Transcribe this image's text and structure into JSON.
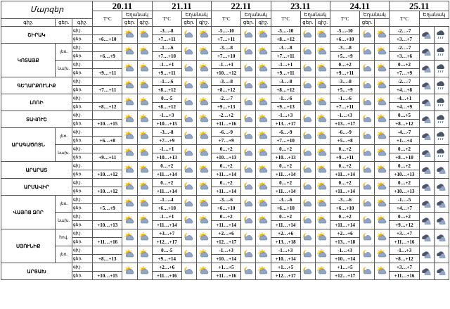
{
  "header": {
    "region_col": "Մարզեր",
    "dates": [
      "20.11",
      "21.11",
      "22.11",
      "23.11",
      "24.11",
      "25.11"
    ],
    "temp_label": "T°C",
    "weather_label": "Եղանակ",
    "period_day": "ցեր.",
    "period_night": "գիշ."
  },
  "rows": [
    {
      "region": "ՇԻՐԱԿ",
      "sub": "",
      "periods": [
        "գիշ.",
        "ցեր."
      ],
      "temps": [
        [
          "",
          "+6…+10"
        ],
        [
          "-3…-8",
          "+7…+11"
        ],
        [
          "-5…-10",
          "+7…+11"
        ],
        [
          "-5…-10",
          "+8…+12"
        ],
        [
          "-5…-10",
          "+6…+10"
        ],
        [
          "-2…-7",
          "+3…+7"
        ]
      ],
      "icons": [
        [
          "sun",
          "sun"
        ],
        [
          "moon",
          "sun"
        ],
        [
          "moon",
          "sun"
        ],
        [
          "moon",
          "sun"
        ],
        [
          "moon",
          "sun"
        ],
        [
          "cloud",
          "rain"
        ]
      ]
    },
    {
      "region": "ԿՈՏԱՅՔ",
      "sub": "լեռ.",
      "periods": [
        "գիշ.",
        "ցեր."
      ],
      "temps": [
        [
          "",
          "+6…+9"
        ],
        [
          "-1…-6",
          "+7…+10"
        ],
        [
          "-3…-8",
          "+7…+10"
        ],
        [
          "-3…-8",
          "+7…+11"
        ],
        [
          "-3…-8",
          "+5…+9"
        ],
        [
          "-2…-7",
          "+3…+6"
        ]
      ],
      "icons": [
        [
          "sun",
          "sun"
        ],
        [
          "moon",
          "sun"
        ],
        [
          "moon",
          "sun"
        ],
        [
          "moon",
          "sun"
        ],
        [
          "moon",
          "sun"
        ],
        [
          "cloud",
          "rain"
        ]
      ]
    },
    {
      "region": "",
      "sub": "նախ.",
      "periods": [
        "գիշ.",
        "ցեր."
      ],
      "temps": [
        [
          "",
          "+9…+11"
        ],
        [
          "-1…+1",
          "+9…+11"
        ],
        [
          "-1…+1",
          "+10…+12"
        ],
        [
          "-1…+1",
          "+9…+11"
        ],
        [
          "0…+2",
          "+9…+11"
        ],
        [
          "0…+2",
          "+7…+9"
        ]
      ],
      "icons": [
        [
          "sun",
          "sun"
        ],
        [
          "moon",
          "sun"
        ],
        [
          "moon",
          "sun"
        ],
        [
          "moon",
          "sun"
        ],
        [
          "moon",
          "sun"
        ],
        [
          "cloud",
          "rain"
        ]
      ]
    },
    {
      "region": "ԳԵՂԱՐՔՈՒՆԻՔ",
      "sub": "",
      "periods": [
        "գիշ.",
        "ցեր."
      ],
      "temps": [
        [
          "",
          "+7…+11"
        ],
        [
          "-1…-6",
          "+8…+12"
        ],
        [
          "-3…-8",
          "+8…+12"
        ],
        [
          "-3…-8",
          "+8…+12"
        ],
        [
          "-3…-8",
          "+5…+9"
        ],
        [
          "-2…-7",
          "+4…+8"
        ]
      ],
      "icons": [
        [
          "sun",
          "sun"
        ],
        [
          "moon",
          "sun"
        ],
        [
          "moon",
          "sun"
        ],
        [
          "moon",
          "sun"
        ],
        [
          "moon",
          "sun"
        ],
        [
          "cloud",
          "rain"
        ]
      ]
    },
    {
      "region": "ԼՈՌԻ",
      "sub": "",
      "periods": [
        "գիշ.",
        "ցեր."
      ],
      "temps": [
        [
          "",
          "+8…+12"
        ],
        [
          "0…-5",
          "+8…+12"
        ],
        [
          "-2…-7",
          "+9…+13"
        ],
        [
          "-1…-6",
          "+9…+13"
        ],
        [
          "-1…-6",
          "+7…+11"
        ],
        [
          "-4…+1",
          "+4…+9"
        ]
      ],
      "icons": [
        [
          "sun",
          "sun"
        ],
        [
          "moon",
          "sun"
        ],
        [
          "moon",
          "sun"
        ],
        [
          "moon",
          "sun"
        ],
        [
          "moon",
          "sun"
        ],
        [
          "cloud",
          "rain"
        ]
      ]
    },
    {
      "region": "ՏԱՎՈՒՇ",
      "sub": "",
      "periods": [
        "գիշ.",
        "ցեր."
      ],
      "temps": [
        [
          "",
          "+10…+15"
        ],
        [
          "-1…+3",
          "+10…+15"
        ],
        [
          "-2…+2",
          "+11…+16"
        ],
        [
          "-1…+3",
          "+13…+17"
        ],
        [
          "-1…+3",
          "+13…+17"
        ],
        [
          "0…+5",
          "+8…+12"
        ]
      ],
      "icons": [
        [
          "sun",
          "sun"
        ],
        [
          "moon",
          "sun"
        ],
        [
          "moon",
          "sun"
        ],
        [
          "moon",
          "sun"
        ],
        [
          "moon",
          "sun"
        ],
        [
          "cloud",
          "rain"
        ]
      ]
    },
    {
      "region": "ԱՐԱԳԱԾՈՏՆ",
      "sub": "լեռ.",
      "periods": [
        "գիշ.",
        "ցեր."
      ],
      "temps": [
        [
          "",
          "+6…+8"
        ],
        [
          "-3…-8",
          "+7…+9"
        ],
        [
          "-6…-9",
          "+7…+9"
        ],
        [
          "-6…-9",
          "+7…+10"
        ],
        [
          "-6…-9",
          "+5…+8"
        ],
        [
          "-4…-7",
          "+1…+4"
        ]
      ],
      "icons": [
        [
          "sun",
          "sun"
        ],
        [
          "moon",
          "sun"
        ],
        [
          "moon",
          "sun"
        ],
        [
          "moon",
          "sun"
        ],
        [
          "moon",
          "sun"
        ],
        [
          "cloud",
          "rain"
        ]
      ]
    },
    {
      "region": "",
      "sub": "նախ.",
      "periods": [
        "գիշ.",
        "ցեր."
      ],
      "temps": [
        [
          "",
          "+9…+11"
        ],
        [
          "-1…+1",
          "+10…+13"
        ],
        [
          "0…+2",
          "+10…+13"
        ],
        [
          "0…+2",
          "+10…+13"
        ],
        [
          "0…+2",
          "+9…+11"
        ],
        [
          "0…+2",
          "+8…+10"
        ]
      ],
      "icons": [
        [
          "sun",
          "sun"
        ],
        [
          "moon",
          "sun"
        ],
        [
          "moon",
          "sun"
        ],
        [
          "moon",
          "sun"
        ],
        [
          "moon",
          "sun"
        ],
        [
          "cloud",
          "rain"
        ]
      ]
    },
    {
      "region": "ԱՐԱՐԱՏ",
      "sub": "",
      "periods": [
        "գիշ.",
        "ցեր."
      ],
      "temps": [
        [
          "",
          "+10…+12"
        ],
        [
          "0…+2",
          "+11…+14"
        ],
        [
          "0…+2",
          "+11…+14"
        ],
        [
          "0…+2",
          "+11…+14"
        ],
        [
          "0…+2",
          "+11…+14"
        ],
        [
          "0…+2",
          "+10…+13"
        ]
      ],
      "icons": [
        [
          "sun",
          "sun"
        ],
        [
          "moon",
          "sun"
        ],
        [
          "moon",
          "sun"
        ],
        [
          "moon",
          "sun"
        ],
        [
          "moon",
          "sun"
        ],
        [
          "cloud",
          "cloud"
        ]
      ]
    },
    {
      "region": "ԱՐՄԱՎԻՐ",
      "sub": "",
      "periods": [
        "գիշ.",
        "ցեր."
      ],
      "temps": [
        [
          "",
          "+10…+12"
        ],
        [
          "0…+2",
          "+11…+14"
        ],
        [
          "0…+2",
          "+11…+14"
        ],
        [
          "0…+2",
          "+11…+14"
        ],
        [
          "0…+2",
          "+11…+14"
        ],
        [
          "0…+2",
          "+10…+13"
        ]
      ],
      "icons": [
        [
          "sun",
          "sun"
        ],
        [
          "moon",
          "sun"
        ],
        [
          "moon",
          "sun"
        ],
        [
          "moon",
          "sun"
        ],
        [
          "moon",
          "sun"
        ],
        [
          "cloud",
          "cloud"
        ]
      ]
    },
    {
      "region": "ՎԱՅՈՑ ՁՈՐ",
      "sub": "լեռ.",
      "periods": [
        "գիշ.",
        "ցեր."
      ],
      "temps": [
        [
          "",
          "+5…+9"
        ],
        [
          "-1…-4",
          "+6…+10"
        ],
        [
          "-3…-6",
          "+6…+10"
        ],
        [
          "-3…-6",
          "+6…+10"
        ],
        [
          "-3…-6",
          "+6…+10"
        ],
        [
          "-1…-5",
          "+4…+7"
        ]
      ],
      "icons": [
        [
          "sun",
          "sun"
        ],
        [
          "moon",
          "sun"
        ],
        [
          "moon",
          "sun"
        ],
        [
          "moon",
          "sun"
        ],
        [
          "moon",
          "sun"
        ],
        [
          "cloud",
          "cloud"
        ]
      ]
    },
    {
      "region": "",
      "sub": "նախ.",
      "periods": [
        "գիշ.",
        "ցեր."
      ],
      "temps": [
        [
          "",
          "+10…+13"
        ],
        [
          "-1…+1",
          "+11…+14"
        ],
        [
          "0…+2",
          "+11…+14"
        ],
        [
          "0…+2",
          "+11…+14"
        ],
        [
          "0…+2",
          "+11…+14"
        ],
        [
          "0…+2",
          "+9…+12"
        ]
      ],
      "icons": [
        [
          "sun",
          "sun"
        ],
        [
          "moon",
          "sun"
        ],
        [
          "moon",
          "sun"
        ],
        [
          "moon",
          "sun"
        ],
        [
          "moon",
          "sun"
        ],
        [
          "cloud",
          "cloud"
        ]
      ]
    },
    {
      "region": "ՍՅՈՒՆԻՔ",
      "sub": "հով.",
      "periods": [
        "գիշ.",
        "ցեր."
      ],
      "temps": [
        [
          "",
          "+11…+16"
        ],
        [
          "+3…+7",
          "+12…+17"
        ],
        [
          "+2…+6",
          "+12…+17"
        ],
        [
          "+2…+6",
          "+13…+18"
        ],
        [
          "+2…+6",
          "+13…+18"
        ],
        [
          "+3…+7",
          "+11…+16"
        ]
      ],
      "icons": [
        [
          "sun",
          "sun"
        ],
        [
          "moon",
          "sun"
        ],
        [
          "moon",
          "sun"
        ],
        [
          "moon",
          "sun"
        ],
        [
          "moon",
          "sun"
        ],
        [
          "cloud",
          "cloud"
        ]
      ]
    },
    {
      "region": "",
      "sub": "լեռ.",
      "periods": [
        "գիշ.",
        "ցեր."
      ],
      "temps": [
        [
          "",
          "+8…+13"
        ],
        [
          "0…-5",
          "+9…+14"
        ],
        [
          "-1…+3",
          "+10…+14"
        ],
        [
          "-1…+3",
          "+10…+14"
        ],
        [
          "-1…+3",
          "+10…+14"
        ],
        [
          "-1…+3",
          "+8…+12"
        ]
      ],
      "icons": [
        [
          "sun",
          "sun"
        ],
        [
          "moon",
          "sun"
        ],
        [
          "moon",
          "sun"
        ],
        [
          "moon",
          "sun"
        ],
        [
          "moon",
          "sun"
        ],
        [
          "cloud",
          "cloud"
        ]
      ]
    },
    {
      "region": "ԱՐՑԱԽ",
      "sub": "",
      "periods": [
        "գիշ.",
        "ցեր."
      ],
      "temps": [
        [
          "",
          "+10…+15"
        ],
        [
          "+2…+6",
          "+11…+16"
        ],
        [
          "+1…+5",
          "+11…+16"
        ],
        [
          "+1…+5",
          "+12…+17"
        ],
        [
          "+1…+5",
          "+12…+17"
        ],
        [
          "+3…+7",
          "+11…+16"
        ]
      ],
      "icons": [
        [
          "sun",
          "sun"
        ],
        [
          "moon",
          "sun"
        ],
        [
          "moon",
          "sun"
        ],
        [
          "moon",
          "sun"
        ],
        [
          "moon",
          "sun"
        ],
        [
          "cloud",
          "cloud"
        ]
      ]
    }
  ],
  "colors": {
    "sun": "#f5b800",
    "cloud": "#8fa6c8",
    "moon": "#f0c040",
    "rain": "#3a6fc4",
    "dark_cloud": "#4b5568"
  }
}
